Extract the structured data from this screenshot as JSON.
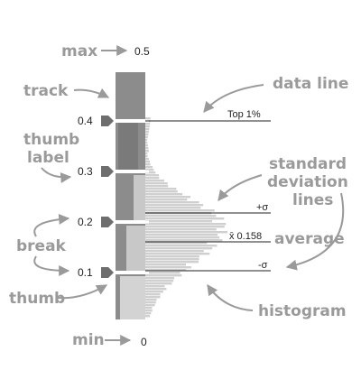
{
  "annotations": {
    "max": "max",
    "min": "min",
    "track": "track",
    "thumb_label_line1": "thumb",
    "thumb_label_line2": "label",
    "break": "break",
    "thumb": "thumb",
    "data_line": "data line",
    "std_line1": "standard",
    "std_line2": "deviation",
    "std_line3": "lines",
    "average": "average",
    "histogram": "histogram"
  },
  "scale": {
    "max_label": "0.5",
    "min_label": "0",
    "ticks": [
      {
        "value": 0.4,
        "label": "0.4"
      },
      {
        "value": 0.3,
        "label": "0.3"
      },
      {
        "value": 0.2,
        "label": "0.2"
      },
      {
        "value": 0.1,
        "label": "0.1"
      }
    ]
  },
  "lines": {
    "top": {
      "label": "Top 1%",
      "value": 0.4
    },
    "plus_sigma": {
      "label": "+σ",
      "value": 0.2
    },
    "mean": {
      "label": "x̄ 0.158",
      "value": 0.158
    },
    "minus_sigma": {
      "label": "-σ",
      "value": 0.11
    }
  },
  "colors": {
    "track": "#8c8c8c",
    "track_dark": "#6e6e6e",
    "thumb": "#c8c8c8",
    "histogram": "#cfcfcf",
    "hand_text": "#9a9a9a",
    "line": "#222222"
  }
}
